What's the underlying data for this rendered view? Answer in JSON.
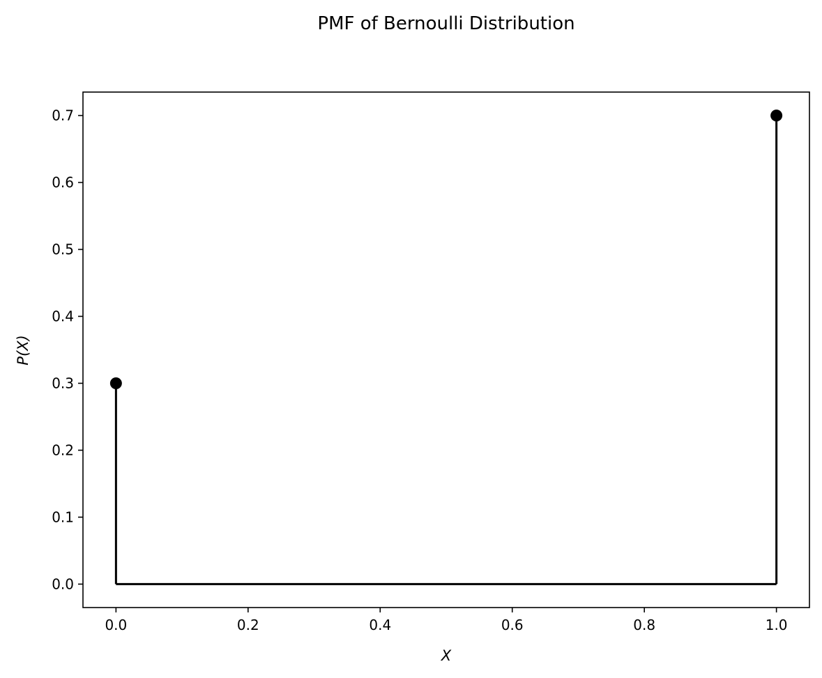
{
  "chart_data": {
    "type": "stem",
    "title": "PMF of Bernoulli Distribution",
    "xlabel": "X",
    "ylabel": "P(X)",
    "x": [
      0.0,
      1.0
    ],
    "y": [
      0.3,
      0.7
    ],
    "baseline": 0.0,
    "xlim": [
      -0.05,
      1.05
    ],
    "ylim": [
      -0.035,
      0.735
    ],
    "xticks": [
      0.0,
      0.2,
      0.4,
      0.6,
      0.8,
      1.0
    ],
    "xtick_labels": [
      "0.0",
      "0.2",
      "0.4",
      "0.6",
      "0.8",
      "1.0"
    ],
    "yticks": [
      0.0,
      0.1,
      0.2,
      0.3,
      0.4,
      0.5,
      0.6,
      0.7
    ],
    "ytick_labels": [
      "0.0",
      "0.1",
      "0.2",
      "0.3",
      "0.4",
      "0.5",
      "0.6",
      "0.7"
    ],
    "grid": false,
    "color": "#000000"
  }
}
